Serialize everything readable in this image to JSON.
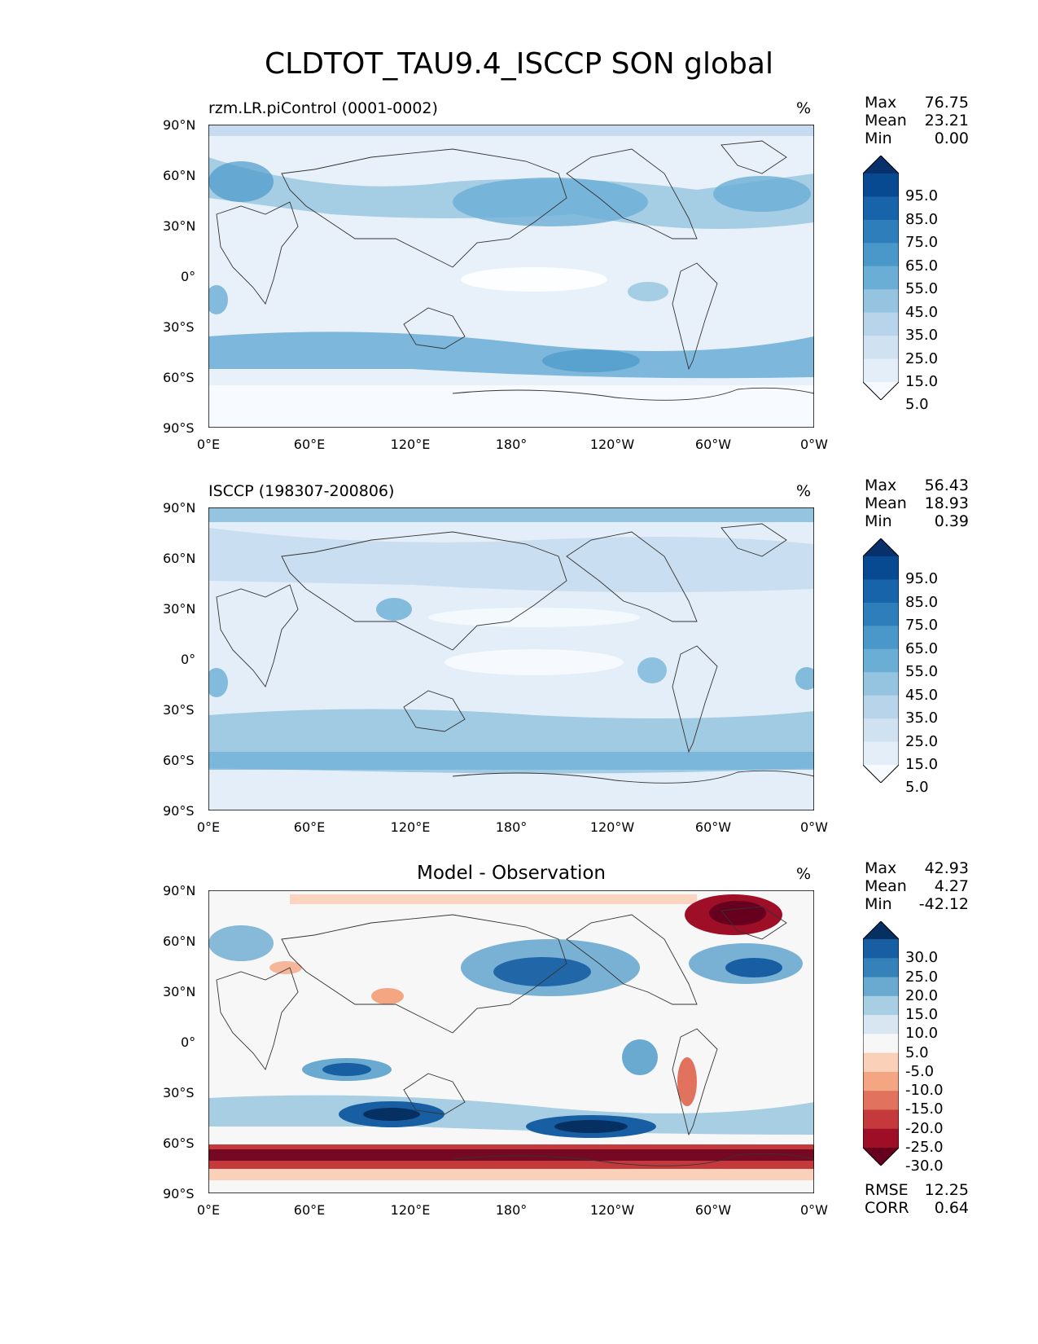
{
  "title": "CLDTOT_TAU9.4_ISCCP SON global",
  "axes": {
    "lat_labels": [
      "90°N",
      "60°N",
      "30°N",
      "0°",
      "30°S",
      "60°S",
      "90°S"
    ],
    "lon_labels": [
      "0°E",
      "60°E",
      "120°E",
      "180°",
      "120°W",
      "60°W",
      "0°W"
    ]
  },
  "panels": [
    {
      "title_left": "rzm.LR.piControl (0001-0002)",
      "title_center": "",
      "unit": "%",
      "stats": [
        {
          "label": "Max",
          "value": "76.75"
        },
        {
          "label": "Mean",
          "value": "23.21"
        },
        {
          "label": "Min",
          "value": "0.00"
        }
      ],
      "colorbar": {
        "colors": [
          "#f7fbff",
          "#e3eef9",
          "#d0e1f2",
          "#b7d4ea",
          "#94c4df",
          "#6aaed6",
          "#4a98c9",
          "#2e7ebc",
          "#1764ab",
          "#084a91",
          "#08306b"
        ],
        "labels": [
          "95.0",
          "85.0",
          "75.0",
          "65.0",
          "55.0",
          "45.0",
          "35.0",
          "25.0",
          "15.0",
          "5.0"
        ]
      },
      "extra": []
    },
    {
      "title_left": "ISCCP (198307-200806)",
      "title_center": "",
      "unit": "%",
      "stats": [
        {
          "label": "Max",
          "value": "56.43"
        },
        {
          "label": "Mean",
          "value": "18.93"
        },
        {
          "label": "Min",
          "value": "0.39"
        }
      ],
      "colorbar": {
        "colors": [
          "#f7fbff",
          "#e3eef9",
          "#d0e1f2",
          "#b7d4ea",
          "#94c4df",
          "#6aaed6",
          "#4a98c9",
          "#2e7ebc",
          "#1764ab",
          "#084a91",
          "#08306b"
        ],
        "labels": [
          "95.0",
          "85.0",
          "75.0",
          "65.0",
          "55.0",
          "45.0",
          "35.0",
          "25.0",
          "15.0",
          "5.0"
        ]
      },
      "extra": []
    },
    {
      "title_left": "",
      "title_center": "Model - Observation",
      "unit": "%",
      "stats": [
        {
          "label": "Max",
          "value": "42.93"
        },
        {
          "label": "Mean",
          "value": "4.27"
        },
        {
          "label": "Min",
          "value": "-42.12"
        }
      ],
      "colorbar": {
        "colors": [
          "#67001f",
          "#9e0f27",
          "#c43a3c",
          "#e0725e",
          "#f4a582",
          "#fbd0b9",
          "#f7f7f7",
          "#d7e6f1",
          "#a8cee4",
          "#6aa9d0",
          "#3581ba",
          "#175fa2",
          "#053061"
        ],
        "labels": [
          "30.0",
          "25.0",
          "20.0",
          "15.0",
          "10.0",
          "5.0",
          "-5.0",
          "-10.0",
          "-15.0",
          "-20.0",
          "-25.0",
          "-30.0"
        ]
      },
      "extra": [
        {
          "label": "RMSE",
          "value": "12.25"
        },
        {
          "label": "CORR",
          "value": "0.64"
        }
      ]
    }
  ]
}
